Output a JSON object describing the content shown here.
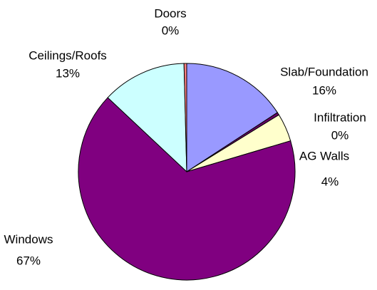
{
  "chart_data": {
    "type": "pie",
    "categories": [
      "Slab/Foundation",
      "Infiltration",
      "AG Walls",
      "Windows",
      "Ceilings/Roofs",
      "Doors"
    ],
    "values": [
      15.8,
      0.4,
      4.2,
      66.6,
      12.6,
      0.4
    ],
    "value_labels": [
      "16%",
      "0%",
      "4%",
      "67%",
      "13%",
      "0%"
    ],
    "colors": [
      "#9999ff",
      "#660066",
      "#ffffcc",
      "#800080",
      "#ccffff",
      "#ff8080"
    ]
  }
}
